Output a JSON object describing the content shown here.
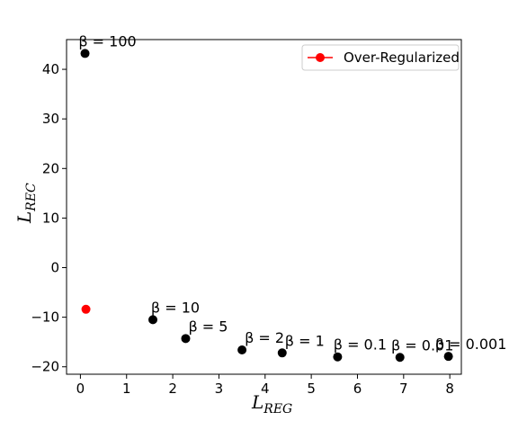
{
  "chart_data": {
    "type": "scatter",
    "title": "",
    "xlabel": {
      "main": "L",
      "sub": "REG"
    },
    "ylabel": {
      "main": "L",
      "sub": "REC"
    },
    "xlim": [
      -0.3,
      8.25
    ],
    "ylim": [
      -21.5,
      46
    ],
    "xticks": [
      0,
      1,
      2,
      3,
      4,
      5,
      6,
      7,
      8
    ],
    "yticks": [
      -20,
      -10,
      0,
      10,
      20,
      30,
      40
    ],
    "grid": false,
    "legend": {
      "position": "top-right",
      "label": "Over-Regularized",
      "color": "#ff0000"
    },
    "series": [
      {
        "color": "#000000",
        "points": [
          {
            "x": 0.1,
            "y": 43.2,
            "label": "β = 100"
          },
          {
            "x": 1.57,
            "y": -10.5,
            "label": "β = 10"
          },
          {
            "x": 2.28,
            "y": -14.3,
            "label": "β = 5"
          },
          {
            "x": 3.5,
            "y": -16.6,
            "label": "β = 2"
          },
          {
            "x": 4.37,
            "y": -17.2,
            "label": "β = 1"
          },
          {
            "x": 5.57,
            "y": -18.0,
            "label": "β = 0.1"
          },
          {
            "x": 6.92,
            "y": -18.1,
            "label": "β = 0.01"
          },
          {
            "x": 7.97,
            "y": -17.9,
            "label": "β = 0.001"
          }
        ]
      },
      {
        "name": "Over-Regularized",
        "color": "#ff0000",
        "points": [
          {
            "x": 0.12,
            "y": -8.4
          }
        ]
      }
    ]
  }
}
